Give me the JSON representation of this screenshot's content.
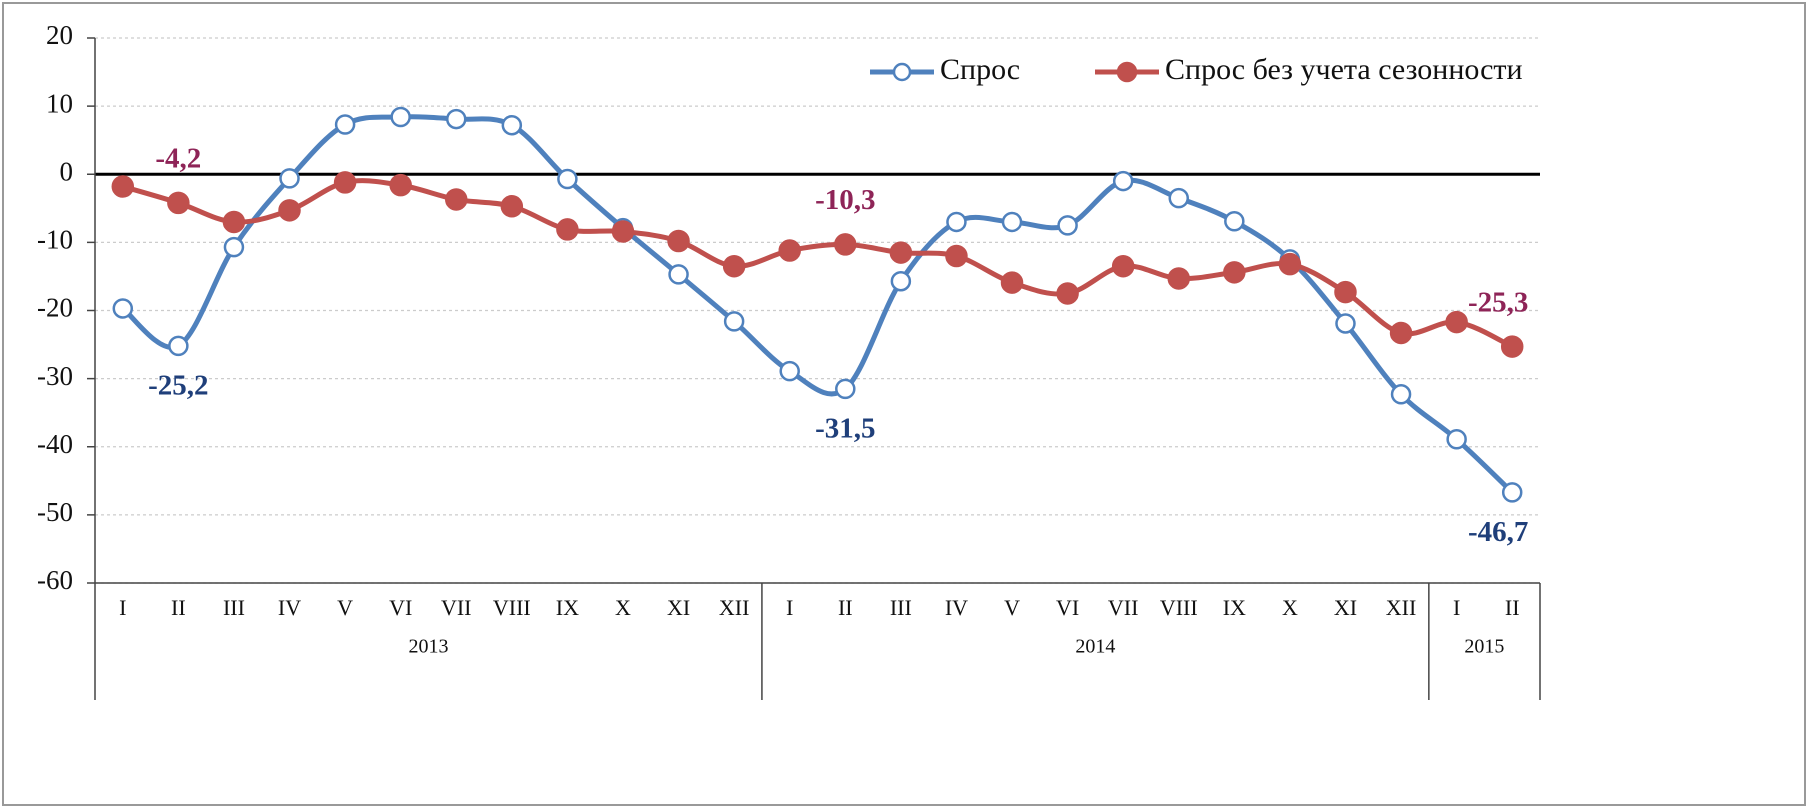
{
  "chart_data": {
    "type": "line",
    "years": [
      {
        "name": "2013",
        "months": [
          "I",
          "II",
          "III",
          "IV",
          "V",
          "VI",
          "VII",
          "VIII",
          "IX",
          "X",
          "XI",
          "XII"
        ]
      },
      {
        "name": "2014",
        "months": [
          "I",
          "II",
          "III",
          "IV",
          "V",
          "VI",
          "VII",
          "VIII",
          "IX",
          "X",
          "XI",
          "XII"
        ]
      },
      {
        "name": "2015",
        "months": [
          "I",
          "II"
        ]
      }
    ],
    "series": [
      {
        "name": "Спрос",
        "color": "#4f81bd",
        "marker": "open",
        "label_color": "#1f3f7a",
        "values": [
          -19.7,
          -25.2,
          -10.7,
          -0.6,
          7.3,
          8.4,
          8.1,
          7.2,
          -0.7,
          -7.9,
          -14.7,
          -21.6,
          -28.9,
          -31.5,
          -15.7,
          -7.0,
          -7.0,
          -7.5,
          -1.0,
          -3.5,
          -6.9,
          -12.5,
          -21.9,
          -32.3,
          -38.9,
          -46.7
        ],
        "value_labels": [
          null,
          "-25,2",
          null,
          null,
          null,
          null,
          null,
          null,
          null,
          null,
          null,
          null,
          null,
          "-31,5",
          null,
          null,
          null,
          null,
          null,
          null,
          null,
          null,
          null,
          null,
          null,
          "-46,7"
        ]
      },
      {
        "name": "Спрос без учета сезонности",
        "color": "#c0504d",
        "marker": "filled",
        "label_color": "#8e2457",
        "values": [
          -1.8,
          -4.2,
          -7.0,
          -5.3,
          -1.2,
          -1.6,
          -3.7,
          -4.7,
          -8.1,
          -8.4,
          -9.8,
          -13.5,
          -11.2,
          -10.3,
          -11.5,
          -12.0,
          -15.9,
          -17.5,
          -13.5,
          -15.3,
          -14.4,
          -13.2,
          -17.3,
          -23.3,
          -21.7,
          -25.3
        ],
        "value_labels": [
          null,
          "-4,2",
          null,
          null,
          null,
          null,
          null,
          null,
          null,
          null,
          null,
          null,
          null,
          "-10,3",
          null,
          null,
          null,
          null,
          null,
          null,
          null,
          null,
          null,
          null,
          null,
          "-25,3"
        ]
      }
    ],
    "ylim": [
      -60,
      20
    ],
    "yticks": [
      -60,
      -50,
      -40,
      -30,
      -20,
      -10,
      0,
      10,
      20
    ],
    "grid": true
  }
}
